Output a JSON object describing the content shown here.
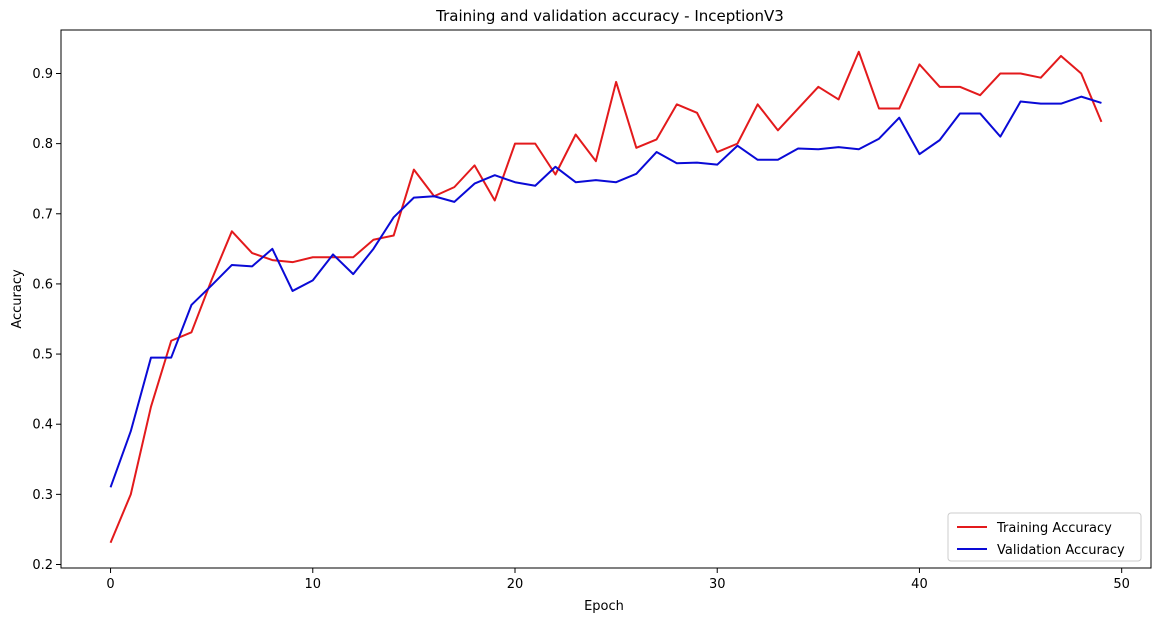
{
  "chart_data": {
    "type": "line",
    "title": "Training and validation accuracy - InceptionV3",
    "xlabel": "Epoch",
    "ylabel": "Accuracy",
    "xlim": [
      -2.45,
      51.45
    ],
    "ylim": [
      0.195,
      0.962
    ],
    "xticks": [
      0,
      10,
      20,
      30,
      40,
      50
    ],
    "yticks": [
      0.2,
      0.3,
      0.4,
      0.5,
      0.6,
      0.7,
      0.8,
      0.9
    ],
    "grid": false,
    "legend_position": "lower-right",
    "x": [
      0,
      1,
      2,
      3,
      4,
      5,
      6,
      7,
      8,
      9,
      10,
      11,
      12,
      13,
      14,
      15,
      16,
      17,
      18,
      19,
      20,
      21,
      22,
      23,
      24,
      25,
      26,
      27,
      28,
      29,
      30,
      31,
      32,
      33,
      34,
      35,
      36,
      37,
      38,
      39,
      40,
      41,
      42,
      43,
      44,
      45,
      46,
      47,
      48,
      49
    ],
    "series": [
      {
        "name": "Training Accuracy",
        "color": "#e31a1c",
        "values": [
          0.231,
          0.3,
          0.425,
          0.519,
          0.531,
          0.606,
          0.675,
          0.644,
          0.634,
          0.631,
          0.638,
          0.638,
          0.638,
          0.663,
          0.669,
          0.763,
          0.725,
          0.738,
          0.769,
          0.719,
          0.8,
          0.8,
          0.756,
          0.813,
          0.775,
          0.888,
          0.794,
          0.806,
          0.856,
          0.844,
          0.788,
          0.8,
          0.856,
          0.819,
          0.85,
          0.881,
          0.863,
          0.931,
          0.85,
          0.85,
          0.913,
          0.881,
          0.881,
          0.869,
          0.9,
          0.9,
          0.894,
          0.925,
          0.9,
          0.831
        ]
      },
      {
        "name": "Validation Accuracy",
        "color": "#0a0ad6",
        "values": [
          0.31,
          0.39,
          0.495,
          0.495,
          0.57,
          0.598,
          0.627,
          0.625,
          0.65,
          0.59,
          0.605,
          0.642,
          0.614,
          0.65,
          0.695,
          0.723,
          0.725,
          0.717,
          0.743,
          0.755,
          0.745,
          0.74,
          0.767,
          0.745,
          0.748,
          0.745,
          0.757,
          0.788,
          0.772,
          0.773,
          0.77,
          0.797,
          0.777,
          0.777,
          0.793,
          0.792,
          0.795,
          0.792,
          0.807,
          0.837,
          0.785,
          0.805,
          0.843,
          0.843,
          0.81,
          0.86,
          0.857,
          0.857,
          0.867,
          0.858
        ]
      }
    ]
  }
}
